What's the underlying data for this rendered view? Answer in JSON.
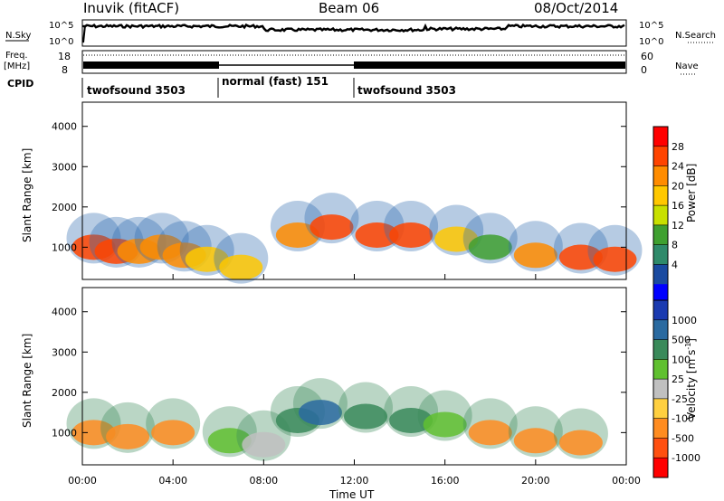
{
  "header": {
    "station": "Inuvik (fitACF)",
    "beam": "Beam 06",
    "date": "08/Oct/2014"
  },
  "noise_panel": {
    "left_label": "N.Sky",
    "right_label": "N.Search",
    "left_ticks": [
      "10^5",
      "10^0"
    ],
    "right_ticks": [
      "10^5",
      "10^0"
    ]
  },
  "freq_panel": {
    "left_label_line1": "Freq.",
    "left_label_line2": "[MHz]",
    "right_label": "Nave",
    "left_ticks": [
      "18",
      "8"
    ],
    "right_ticks": [
      "60",
      "0"
    ]
  },
  "cpid_panel": {
    "label": "CPID",
    "segments": [
      {
        "name": "twofsound 3503",
        "start_h": 0,
        "end_h": 6
      },
      {
        "name": "normal (fast) 151",
        "start_h": 6,
        "end_h": 12
      },
      {
        "name": "twofsound 3503",
        "start_h": 12,
        "end_h": 24
      }
    ]
  },
  "power_panel": {
    "ylabel": "Slant Range [km]",
    "y_ticks": [
      "4000",
      "3000",
      "2000",
      "1000"
    ],
    "colorbar_label": "Power [dB]",
    "colorbar_ticks": [
      "28",
      "24",
      "20",
      "16",
      "12",
      "8",
      "4"
    ],
    "colorbar_colors": [
      "#ff0000",
      "#ff4400",
      "#ff8c00",
      "#ffc800",
      "#c8e000",
      "#3fa030",
      "#2f8a6a",
      "#1a4aa0",
      "#0000ff"
    ]
  },
  "velocity_panel": {
    "ylabel": "Slant Range [km]",
    "y_ticks": [
      "4000",
      "3000",
      "2000",
      "1000"
    ],
    "colorbar_label": "Velocity [m s",
    "colorbar_label_sup": "-1",
    "colorbar_label_end": "]",
    "colorbar_ticks": [
      "1000",
      "500",
      "100",
      "25",
      "-25",
      "-100",
      "-500",
      "-1000"
    ],
    "colorbar_colors": [
      "#1a3ab0",
      "#2a6aa0",
      "#3a8a5a",
      "#60c030",
      "#c0c0c0",
      "#ffd040",
      "#ff8c20",
      "#ff5010",
      "#ff0000"
    ]
  },
  "x_axis": {
    "label": "Time UT",
    "ticks": [
      "00:00",
      "04:00",
      "08:00",
      "12:00",
      "16:00",
      "20:00",
      "00:00"
    ]
  },
  "chart_data": {
    "type": "heatmap",
    "title": "Inuvik (fitACF)",
    "subtitle": "Beam 06",
    "xlabel": "Time UT",
    "ylabel": "Slant Range [km]",
    "xlim": [
      0,
      24
    ],
    "ylim": [
      200,
      4600
    ],
    "series": [
      {
        "name": "Power [dB]",
        "points": [
          {
            "t": 0.5,
            "r": 1000,
            "v": 28
          },
          {
            "t": 1.5,
            "r": 900,
            "v": 26
          },
          {
            "t": 2.5,
            "r": 900,
            "v": 24
          },
          {
            "t": 3.5,
            "r": 1000,
            "v": 22
          },
          {
            "t": 4.5,
            "r": 800,
            "v": 24
          },
          {
            "t": 5.5,
            "r": 700,
            "v": 20
          },
          {
            "t": 7.0,
            "r": 500,
            "v": 18
          },
          {
            "t": 9.5,
            "r": 1300,
            "v": 24
          },
          {
            "t": 11.0,
            "r": 1500,
            "v": 26
          },
          {
            "t": 13.0,
            "r": 1300,
            "v": 28
          },
          {
            "t": 14.5,
            "r": 1300,
            "v": 26
          },
          {
            "t": 16.5,
            "r": 1200,
            "v": 20
          },
          {
            "t": 18.0,
            "r": 1000,
            "v": 14
          },
          {
            "t": 20.0,
            "r": 800,
            "v": 24
          },
          {
            "t": 22.0,
            "r": 750,
            "v": 28
          },
          {
            "t": 23.5,
            "r": 700,
            "v": 26
          }
        ]
      },
      {
        "name": "Velocity [m s-1]",
        "points": [
          {
            "t": 0.5,
            "r": 1000,
            "v": -100
          },
          {
            "t": 2.0,
            "r": 900,
            "v": -100
          },
          {
            "t": 4.0,
            "r": 1000,
            "v": -100
          },
          {
            "t": 6.5,
            "r": 800,
            "v": 25
          },
          {
            "t": 8.0,
            "r": 700,
            "v": 0
          },
          {
            "t": 9.5,
            "r": 1300,
            "v": 100
          },
          {
            "t": 10.5,
            "r": 1500,
            "v": 500
          },
          {
            "t": 12.5,
            "r": 1400,
            "v": 100
          },
          {
            "t": 14.5,
            "r": 1300,
            "v": 100
          },
          {
            "t": 16.0,
            "r": 1200,
            "v": 25
          },
          {
            "t": 18.0,
            "r": 1000,
            "v": -100
          },
          {
            "t": 20.0,
            "r": 800,
            "v": -100
          },
          {
            "t": 22.0,
            "r": 750,
            "v": -100
          }
        ]
      }
    ]
  }
}
